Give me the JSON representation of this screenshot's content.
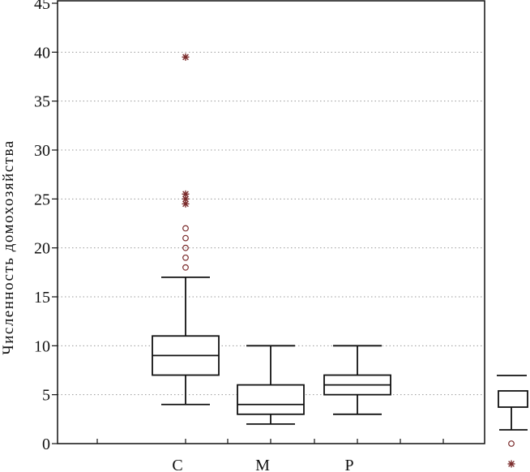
{
  "chart_data": {
    "type": "boxplot",
    "title": "",
    "ylabel": "Численность домохозяйства",
    "xlabel": "",
    "ylim": [
      0,
      45
    ],
    "yticks": [
      0,
      5,
      10,
      15,
      20,
      25,
      30,
      35,
      40,
      45
    ],
    "grid": true,
    "categories": [
      "С",
      "М",
      "Р"
    ],
    "boxes": [
      {
        "category": "С",
        "whisker_low": 4,
        "q1": 7,
        "median": 9,
        "q3": 11,
        "whisker_high": 17,
        "outliers": [
          18,
          19,
          20,
          21,
          22
        ],
        "extremes": [
          24.5,
          25,
          25.5,
          39.5
        ]
      },
      {
        "category": "М",
        "whisker_low": 2,
        "q1": 3,
        "median": 4,
        "q3": 6,
        "whisker_high": 10,
        "outliers": [],
        "extremes": []
      },
      {
        "category": "Р",
        "whisker_low": 3,
        "q1": 5,
        "median": 6,
        "q3": 7,
        "whisker_high": 10,
        "outliers": [],
        "extremes": []
      }
    ],
    "colors": {
      "box": "#111111",
      "outlier": "#7a2b2b",
      "extreme": "#7a2b2b",
      "grid": "#9a9a9a"
    }
  }
}
